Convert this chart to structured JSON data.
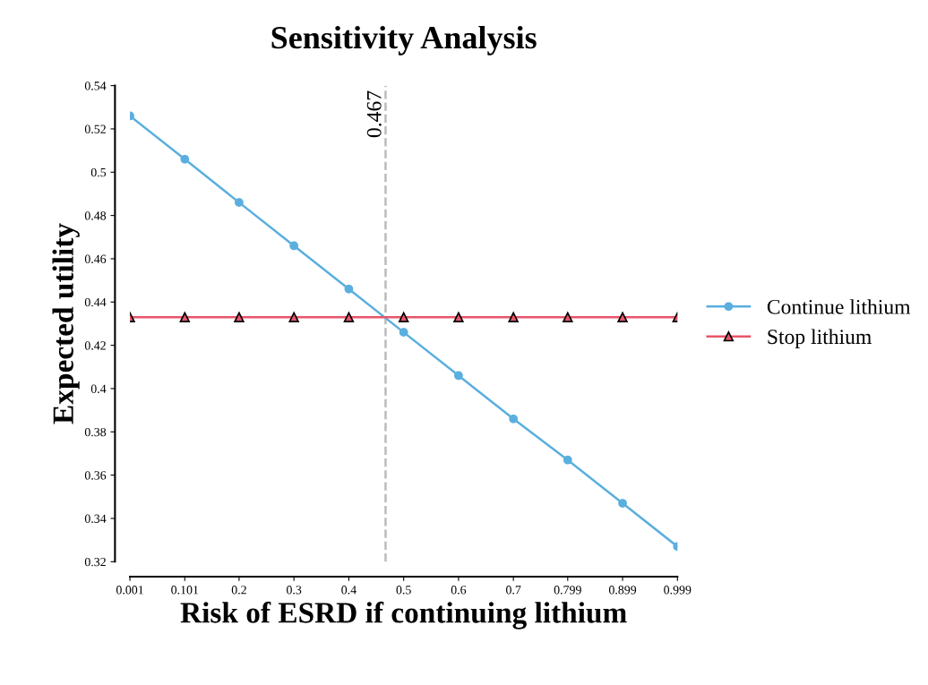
{
  "chart_data": {
    "type": "line",
    "title": "Sensitivity Analysis",
    "xlabel": "Risk of ESRD if continuing lithium",
    "ylabel": "Expected utility",
    "x": [
      0.001,
      0.101,
      0.2,
      0.3,
      0.4,
      0.5,
      0.6,
      0.7,
      0.799,
      0.899,
      0.999
    ],
    "series": [
      {
        "name": "Continue lithium",
        "color": "#5aafdf",
        "marker": "circle",
        "values": [
          0.526,
          0.506,
          0.486,
          0.466,
          0.446,
          0.426,
          0.406,
          0.386,
          0.367,
          0.347,
          0.327
        ]
      },
      {
        "name": "Stop lithium",
        "color": "#e8556a",
        "marker": "triangle",
        "values": [
          0.433,
          0.433,
          0.433,
          0.433,
          0.433,
          0.433,
          0.433,
          0.433,
          0.433,
          0.433,
          0.433
        ]
      }
    ],
    "xlim": [
      0.001,
      0.999
    ],
    "xticks": [
      0.001,
      0.101,
      0.2,
      0.3,
      0.4,
      0.5,
      0.6,
      0.7,
      0.799,
      0.899,
      0.999
    ],
    "ylim": [
      0.32,
      0.54
    ],
    "yticks": [
      0.32,
      0.34,
      0.36,
      0.38,
      0.4,
      0.42,
      0.44,
      0.46,
      0.48,
      0.5,
      0.52,
      0.54
    ],
    "ref_lines": [
      {
        "axis": "x",
        "value": 0.467,
        "label": "0.467",
        "color": "#bbbbbb",
        "line_style": "dashed"
      }
    ],
    "legend": "right",
    "grid": false
  }
}
